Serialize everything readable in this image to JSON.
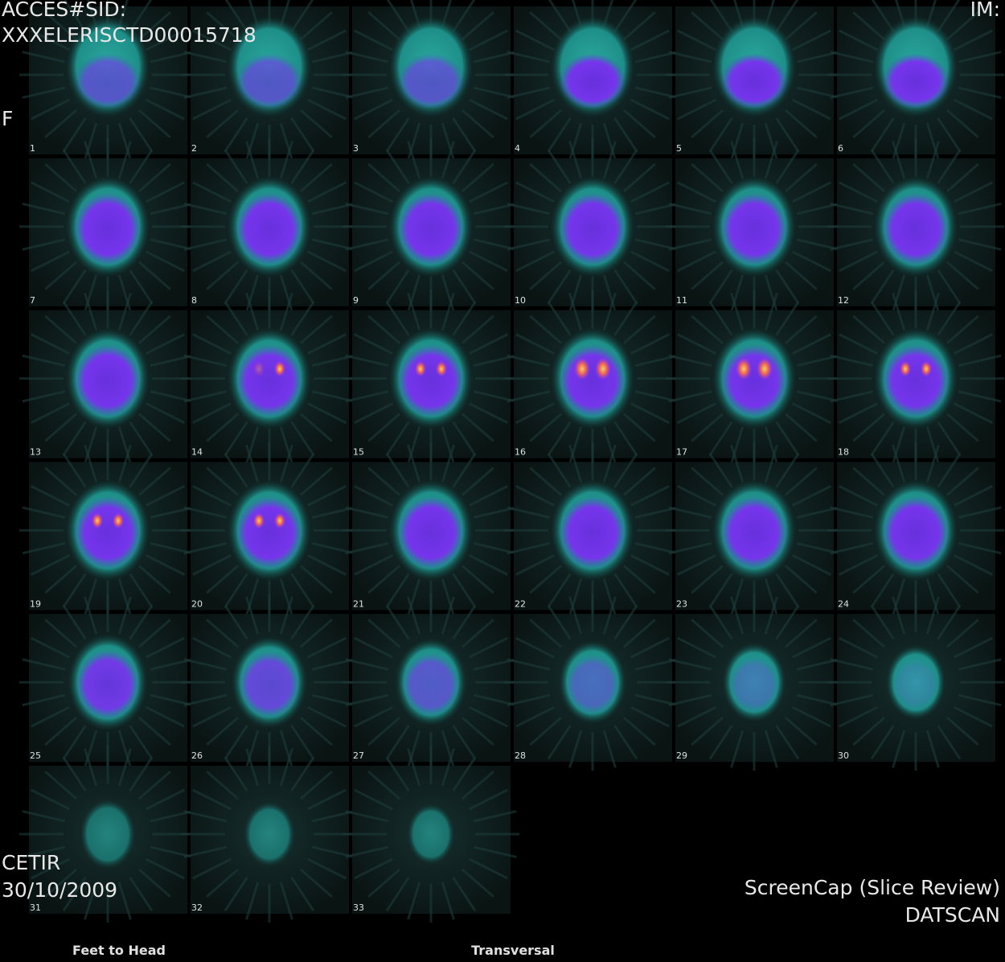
{
  "header": {
    "accession_label": "ACCES#SID:",
    "accession_id": "XXXELERISCTD00015718",
    "image_label": "IM:",
    "orientation": "F"
  },
  "slices": [
    "1",
    "2",
    "3",
    "4",
    "5",
    "6",
    "7",
    "8",
    "9",
    "10",
    "11",
    "12",
    "13",
    "14",
    "15",
    "16",
    "17",
    "18",
    "19",
    "20",
    "21",
    "22",
    "23",
    "24",
    "25",
    "26",
    "27",
    "28",
    "29",
    "30",
    "31",
    "32",
    "33"
  ],
  "footer": {
    "institution": "CETIR",
    "date": "30/10/2009",
    "capture": "ScreenCap (Slice Review)",
    "study": "DATSCAN",
    "direction": "Feet to Head",
    "plane": "Transversal"
  }
}
